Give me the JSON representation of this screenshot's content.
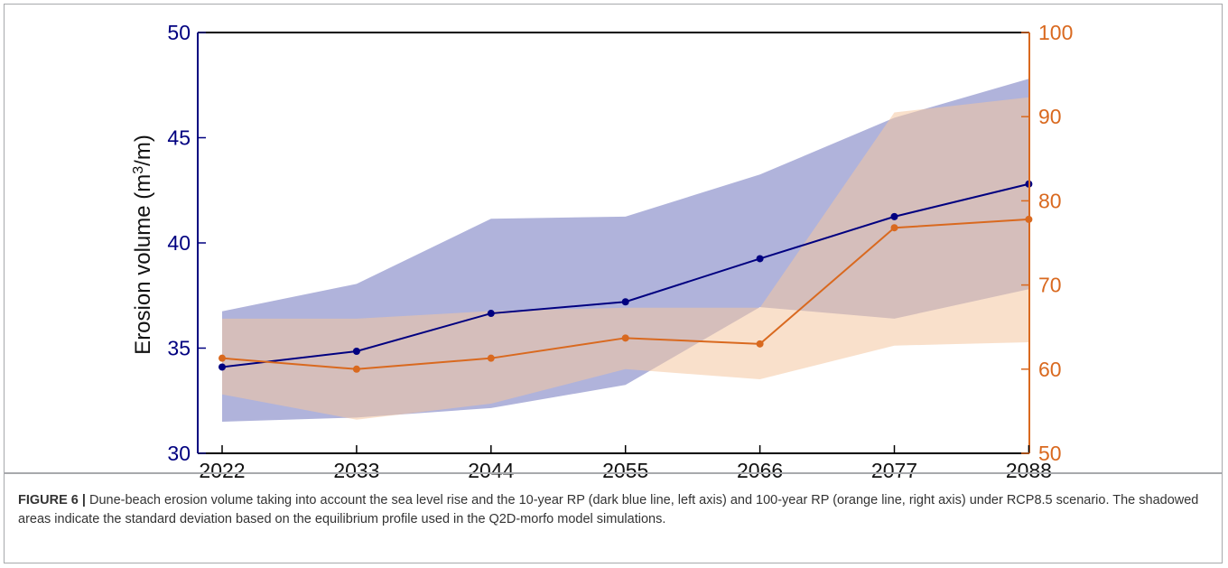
{
  "chart_data": {
    "type": "line",
    "x": [
      "2022",
      "2033",
      "2044",
      "2055",
      "2066",
      "2077",
      "2088"
    ],
    "ylabel": "Erosion volume (m",
    "ylabel_sup": "3",
    "ylabel_tail": "/m)",
    "ylim": [
      30,
      50
    ],
    "y2lim": [
      50,
      100
    ],
    "yticks": [
      "30",
      "35",
      "40",
      "45",
      "50"
    ],
    "y2ticks": [
      "50",
      "60",
      "70",
      "80",
      "90",
      "100"
    ],
    "grid": false,
    "series": [
      {
        "axis": "left",
        "color": "#000080",
        "values": [
          34.1,
          34.85,
          36.65,
          37.2,
          39.25,
          41.25,
          42.8
        ],
        "band_upper": [
          36.75,
          38.05,
          41.15,
          41.25,
          43.25,
          45.95,
          47.8
        ],
        "band_lower": [
          31.5,
          31.7,
          32.15,
          33.25,
          36.95,
          36.4,
          37.8
        ],
        "band_color": "#7f84c5"
      },
      {
        "axis": "right",
        "color": "#d9691f",
        "values": [
          61.3,
          60.0,
          61.3,
          63.7,
          63.0,
          76.8,
          77.8
        ],
        "band_upper": [
          66.0,
          66.0,
          66.9,
          67.3,
          67.3,
          90.5,
          92.3
        ],
        "band_lower": [
          57.0,
          54.0,
          55.9,
          60.0,
          58.8,
          62.8,
          63.2
        ],
        "band_color": "#f4c6a0"
      }
    ]
  },
  "caption": {
    "label": "FIGURE 6 |",
    "text": " Dune-beach erosion volume taking into account the sea level rise and the 10-year RP (dark blue line, left axis) and 100-year RP (orange line, right axis) under RCP8.5 scenario. The shadowed areas indicate the standard deviation based on the equilibrium profile used in the Q2D-morfo model simulations."
  }
}
